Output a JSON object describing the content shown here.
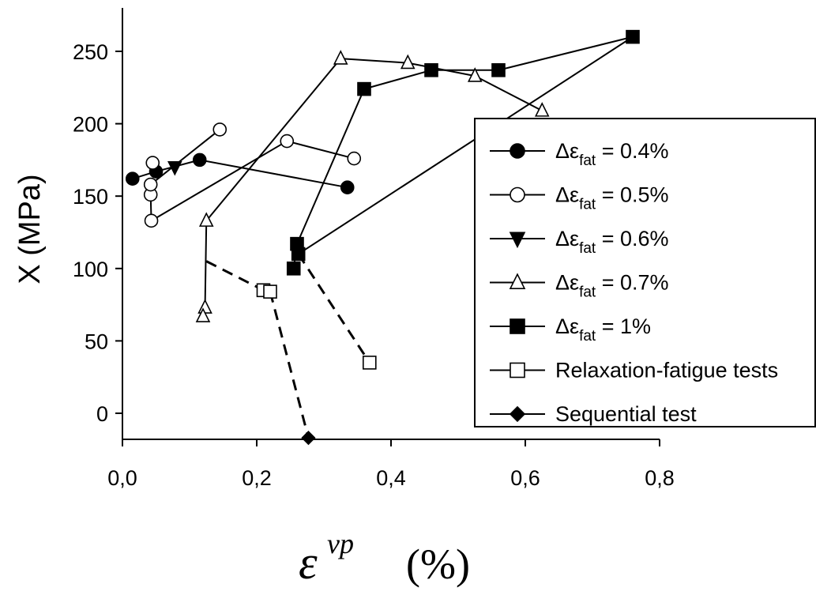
{
  "chart_data": {
    "type": "scatter",
    "xlabel": {
      "symbol": "ε",
      "superscript": "vp",
      "unit": "(%)"
    },
    "ylabel": "X (MPa)",
    "xlim": [
      0.0,
      0.8
    ],
    "ylim": [
      -18,
      280
    ],
    "x_ticks": [
      {
        "value": 0.0,
        "label": "0,0"
      },
      {
        "value": 0.2,
        "label": "0,2"
      },
      {
        "value": 0.4,
        "label": "0,4"
      },
      {
        "value": 0.6,
        "label": "0,6"
      },
      {
        "value": 0.8,
        "label": "0,8"
      }
    ],
    "y_ticks": [
      {
        "value": 0,
        "label": "0"
      },
      {
        "value": 50,
        "label": "50"
      },
      {
        "value": 100,
        "label": "100"
      },
      {
        "value": 150,
        "label": "150"
      },
      {
        "value": 200,
        "label": "200"
      },
      {
        "value": 250,
        "label": "250"
      }
    ],
    "grid": false,
    "legend_position": "right",
    "series": [
      {
        "legend_prefix": "Δε",
        "legend_sub": "fat",
        "legend_suffix": " = 0.4%",
        "marker": "circle",
        "fill": "#000000",
        "lines": [
          [
            0,
            1
          ],
          [
            1,
            2
          ],
          [
            2,
            3
          ]
        ],
        "dash": false,
        "points": [
          [
            0.015,
            162
          ],
          [
            0.05,
            167
          ],
          [
            0.115,
            175
          ],
          [
            0.335,
            156
          ]
        ]
      },
      {
        "legend_prefix": "Δε",
        "legend_sub": "fat",
        "legend_suffix": " = 0.5%",
        "marker": "circle",
        "fill": "#ffffff",
        "lines": [
          [
            4,
            3
          ],
          [
            3,
            1
          ],
          [
            1,
            2
          ],
          [
            2,
            5
          ],
          [
            5,
            6
          ]
        ],
        "dash": false,
        "points": [
          [
            0.045,
            173
          ],
          [
            0.042,
            151
          ],
          [
            0.043,
            133
          ],
          [
            0.042,
            158
          ],
          [
            0.145,
            196
          ],
          [
            0.245,
            188
          ],
          [
            0.345,
            176
          ]
        ]
      },
      {
        "legend_prefix": "Δε",
        "legend_sub": "fat",
        "legend_suffix": " = 0.6%",
        "marker": "triangle-down",
        "fill": "#000000",
        "lines": [],
        "dash": false,
        "points": [
          [
            0.078,
            170
          ]
        ]
      },
      {
        "legend_prefix": "Δε",
        "legend_sub": "fat",
        "legend_suffix": " = 0.7%",
        "marker": "triangle-up",
        "fill": "#ffffff",
        "lines": [
          [
            1,
            2
          ],
          [
            1,
            0
          ],
          [
            0,
            3
          ],
          [
            3,
            4
          ],
          [
            4,
            5
          ],
          [
            5,
            6
          ]
        ],
        "dash": false,
        "points": [
          [
            0.125,
            133
          ],
          [
            0.123,
            73
          ],
          [
            0.12,
            67
          ],
          [
            0.325,
            245
          ],
          [
            0.425,
            242
          ],
          [
            0.525,
            233
          ],
          [
            0.625,
            209
          ]
        ]
      },
      {
        "legend_prefix": "Δε",
        "legend_sub": "fat",
        "legend_suffix": " = 1%",
        "marker": "square",
        "fill": "#000000",
        "lines": [
          [
            0,
            1
          ],
          [
            2,
            3
          ],
          [
            3,
            4
          ],
          [
            4,
            5
          ],
          [
            5,
            6
          ],
          [
            1,
            2
          ]
        ],
        "dash": false,
        "points": [
          [
            0.255,
            100
          ],
          [
            0.26,
            117
          ],
          [
            0.36,
            224
          ],
          [
            0.46,
            237
          ],
          [
            0.56,
            237
          ],
          [
            0.76,
            260
          ],
          [
            0.262,
            110
          ]
        ]
      },
      {
        "legend_prefix": "Relaxation-fatigue tests",
        "legend_sub": "",
        "legend_suffix": "",
        "marker": "square",
        "fill": "#ffffff",
        "lines": [],
        "dash": false,
        "points": [
          [
            0.21,
            85
          ],
          [
            0.22,
            84
          ],
          [
            0.368,
            35
          ]
        ]
      },
      {
        "legend_prefix": "Sequential test",
        "legend_sub": "",
        "legend_suffix": "",
        "marker": "diamond",
        "fill": "#000000",
        "lines": [],
        "dash": false,
        "points": [
          [
            0.277,
            -17
          ]
        ]
      }
    ],
    "dashed_paths": [
      [
        [
          0.125,
          105
        ],
        [
          0.21,
          85
        ]
      ],
      [
        [
          0.22,
          84
        ],
        [
          0.277,
          -17
        ]
      ],
      [
        [
          0.262,
          110
        ],
        [
          0.368,
          35
        ]
      ]
    ]
  }
}
